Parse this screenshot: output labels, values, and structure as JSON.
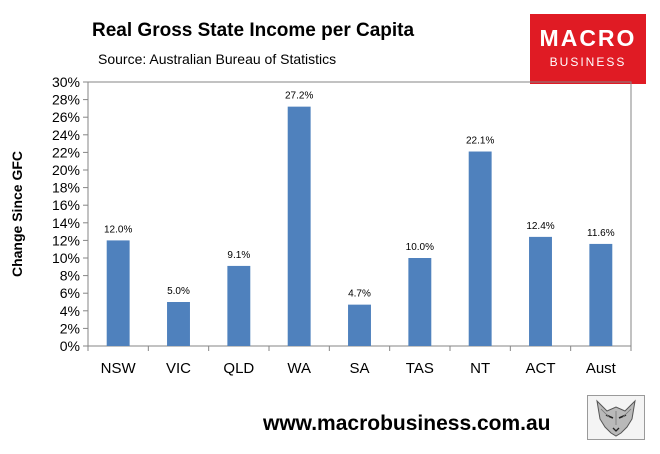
{
  "chart_data": {
    "type": "bar",
    "title": "Real Gross State Income per Capita",
    "subtitle": "Source: Australian Bureau of Statistics",
    "ylabel": "Change Since GFC",
    "xlabel": "",
    "categories": [
      "NSW",
      "VIC",
      "QLD",
      "WA",
      "SA",
      "TAS",
      "NT",
      "ACT",
      "Aust"
    ],
    "values": [
      12.0,
      5.0,
      9.1,
      27.2,
      4.7,
      10.0,
      22.1,
      12.4,
      11.6
    ],
    "data_labels": [
      "12.0%",
      "5.0%",
      "9.1%",
      "27.2%",
      "4.7%",
      "10.0%",
      "22.1%",
      "12.4%",
      "11.6%"
    ],
    "ylim": [
      0,
      30
    ],
    "yticks": [
      "0%",
      "2%",
      "4%",
      "6%",
      "8%",
      "10%",
      "12%",
      "14%",
      "16%",
      "18%",
      "20%",
      "22%",
      "24%",
      "26%",
      "28%",
      "30%"
    ],
    "grid": false,
    "legend": "none",
    "bar_color": "#4f81bd"
  },
  "branding": {
    "logo_line1": "MACRO",
    "logo_line2": "BUSINESS",
    "logo_color": "#e01b24",
    "website": "www.macrobusiness.com.au",
    "icon": "wolf-icon"
  }
}
